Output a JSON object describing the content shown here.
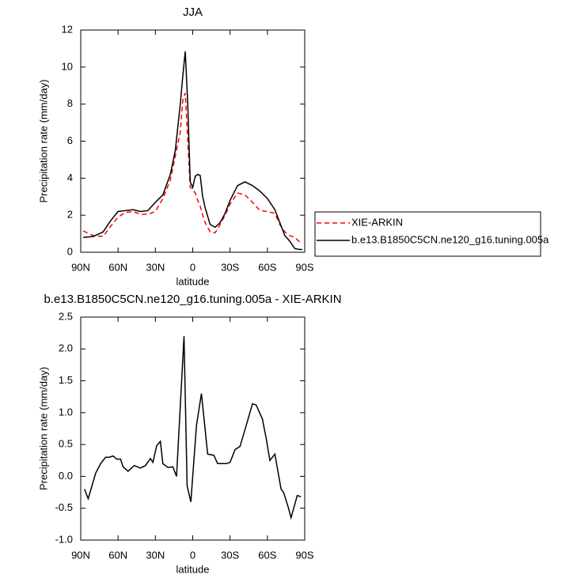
{
  "chart_data": [
    {
      "type": "line",
      "title": "JJA",
      "x_label": "latitude",
      "y_label": "Precipitation rate (mm/day)",
      "x": [
        88,
        80,
        72,
        66,
        60,
        54,
        48,
        42,
        36,
        30,
        24,
        18,
        14,
        10,
        8,
        6,
        4,
        2,
        0,
        -2,
        -4,
        -6,
        -8,
        -10,
        -14,
        -18,
        -22,
        -26,
        -30,
        -36,
        -42,
        -48,
        -54,
        -60,
        -66,
        -70,
        -74,
        -78,
        -82,
        -86,
        -88
      ],
      "series": [
        {
          "name": "XIE-ARKIN",
          "color": "#ff0000",
          "line_style": "dashed",
          "values": [
            1.15,
            0.9,
            0.85,
            1.4,
            1.9,
            2.15,
            2.2,
            2.05,
            2.05,
            2.2,
            2.9,
            3.9,
            5.2,
            6.5,
            8.2,
            8.6,
            6,
            3.5,
            3.4,
            3.2,
            2.8,
            2.5,
            2.0,
            1.6,
            1.1,
            1.05,
            1.5,
            2.0,
            2.6,
            3.2,
            3.1,
            2.7,
            2.25,
            2.2,
            2.1,
            1.5,
            1.1,
            0.9,
            0.8,
            0.55,
            0.5
          ]
        },
        {
          "name": "b.e13.B1850C5CN.ne120_g16.tuning.005a",
          "color": "#000000",
          "line_style": "solid",
          "values": [
            0.8,
            0.85,
            1.1,
            1.7,
            2.2,
            2.25,
            2.3,
            2.2,
            2.25,
            2.7,
            3.1,
            4.2,
            5.5,
            8,
            9.5,
            10.85,
            8,
            3.8,
            3.5,
            4.1,
            4.2,
            4.15,
            3.0,
            2.4,
            1.5,
            1.35,
            1.6,
            2.1,
            2.8,
            3.6,
            3.8,
            3.6,
            3.3,
            2.9,
            2.3,
            1.6,
            0.9,
            0.6,
            0.2,
            0.15,
            0.15
          ]
        }
      ],
      "xlim": [
        90,
        -90
      ],
      "xticks": [
        {
          "value": 90,
          "label": "90N"
        },
        {
          "value": 60,
          "label": "60N"
        },
        {
          "value": 30,
          "label": "30N"
        },
        0,
        {
          "value": -30,
          "label": "30S"
        },
        {
          "value": -60,
          "label": "60S"
        },
        {
          "value": -90,
          "label": "90S"
        }
      ],
      "ylim": [
        0,
        12
      ],
      "yticks": [
        0,
        2,
        4,
        6,
        8,
        10,
        12
      ],
      "grid": false,
      "legend": "right"
    },
    {
      "type": "line",
      "title": "b.e13.B1850C5CN.ne120_g16.tuning.005a - XIE-ARKIN",
      "x_label": "latitude",
      "y_label": "Precipitation rate (mm/day)",
      "x": [
        87,
        84,
        78,
        74,
        70,
        67,
        64,
        61,
        58,
        56,
        52,
        47,
        42,
        38,
        34,
        32,
        29,
        26,
        24,
        20,
        16,
        13,
        7,
        4.5,
        1.5,
        -3,
        -7,
        -12,
        -17,
        -20,
        -27,
        -30,
        -34,
        -38,
        -43,
        -48,
        -51,
        -56,
        -59,
        -62,
        -66,
        -71,
        -73,
        -77,
        -79,
        -84,
        -87
      ],
      "values": [
        -0.2,
        -0.35,
        0.05,
        0.2,
        0.3,
        0.3,
        0.32,
        0.27,
        0.27,
        0.15,
        0.08,
        0.17,
        0.13,
        0.17,
        0.28,
        0.22,
        0.48,
        0.55,
        0.2,
        0.14,
        0.15,
        0.0,
        2.2,
        -0.15,
        -0.4,
        0.8,
        1.3,
        0.35,
        0.33,
        0.2,
        0.2,
        0.22,
        0.42,
        0.47,
        0.8,
        1.14,
        1.12,
        0.9,
        0.6,
        0.25,
        0.35,
        -0.2,
        -0.25,
        -0.5,
        -0.65,
        -0.3,
        -0.32
      ],
      "color": "#000000",
      "line_style": "solid",
      "xlim": [
        90,
        -90
      ],
      "xticks": [
        {
          "value": 90,
          "label": "90N"
        },
        {
          "value": 60,
          "label": "60N"
        },
        {
          "value": 30,
          "label": "30N"
        },
        0,
        {
          "value": -30,
          "label": "30S"
        },
        {
          "value": -60,
          "label": "60S"
        },
        {
          "value": -90,
          "label": "90S"
        }
      ],
      "ylim": [
        -1,
        2.5
      ],
      "yticks": [
        {
          "value": -1,
          "label": "-1.0"
        },
        -0.5,
        {
          "value": 0,
          "label": "0.0"
        },
        0.5,
        {
          "value": 1,
          "label": "1.0"
        },
        1.5,
        {
          "value": 2,
          "label": "2.0"
        },
        2.5
      ],
      "grid": false
    }
  ]
}
